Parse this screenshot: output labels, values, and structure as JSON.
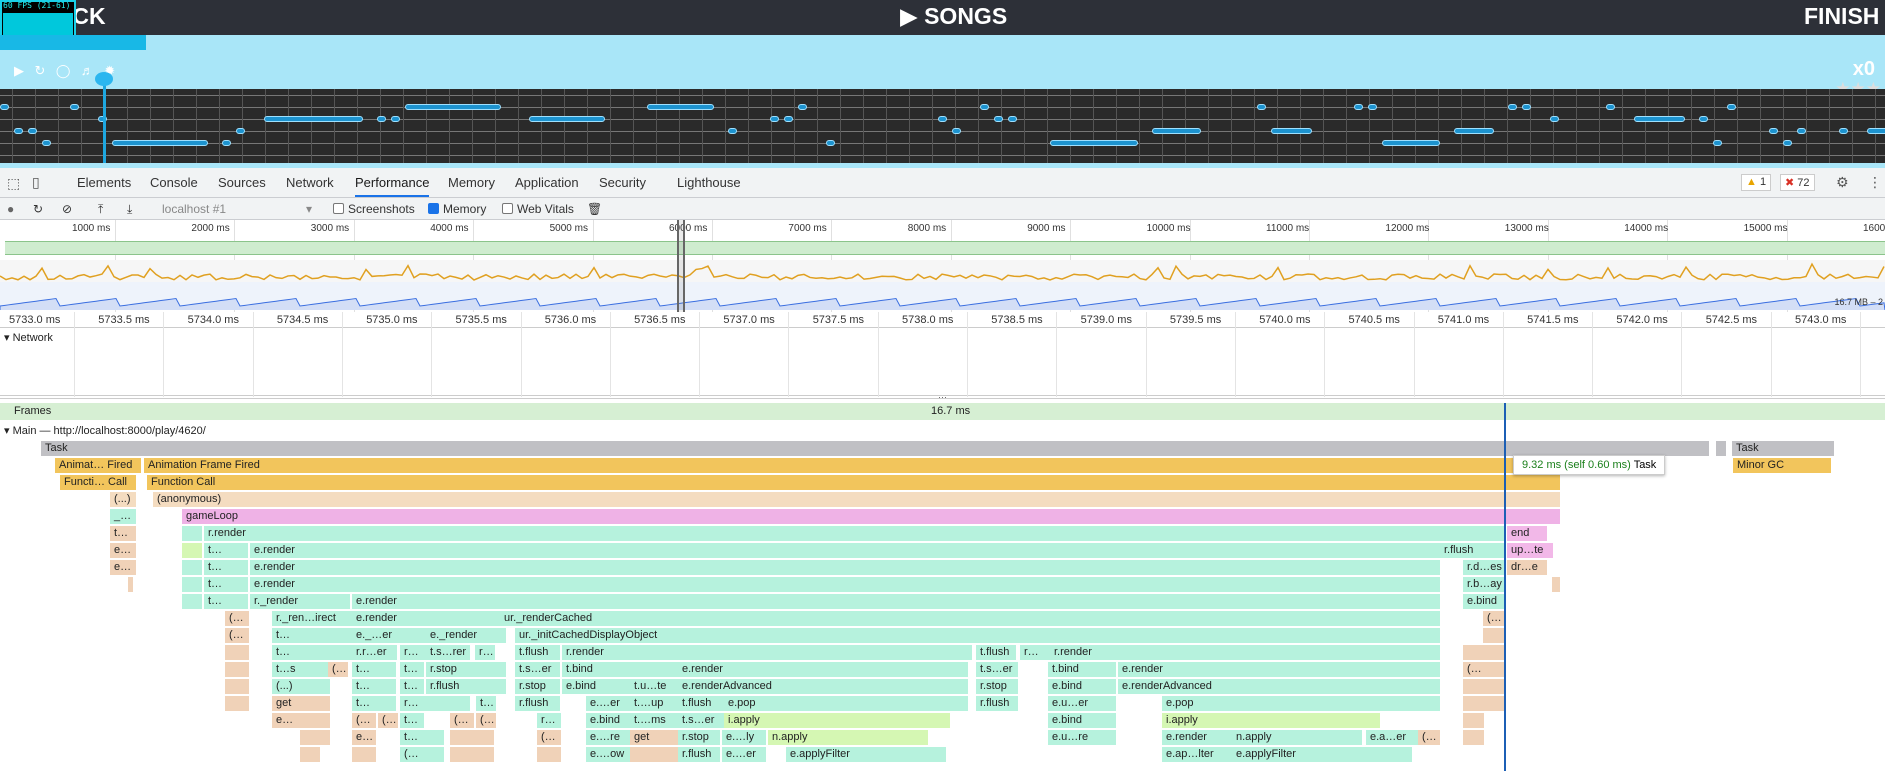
{
  "game": {
    "fps_text": "60 FPS (21-61)",
    "back_label": "BACK",
    "songs_label": "SONGS",
    "finish_label": "FINISH",
    "combo": "x0"
  },
  "devtools": {
    "tabs": [
      "Elements",
      "Console",
      "Sources",
      "Network",
      "Performance",
      "Memory",
      "Application",
      "Security",
      "Lighthouse"
    ],
    "warnings": "1",
    "errors": "72",
    "toolbar": {
      "target": "localhost #1",
      "screenshots": "Screenshots",
      "memory": "Memory",
      "web_vitals": "Web Vitals"
    },
    "overview_ticks": [
      "1000 ms",
      "2000 ms",
      "3000 ms",
      "4000 ms",
      "5000 ms",
      "6000 ms",
      "7000 ms",
      "8000 ms",
      "9000 ms",
      "10000 ms",
      "11000 ms",
      "12000 ms",
      "13000 ms",
      "14000 ms",
      "15000 ms",
      "1600"
    ],
    "memory_range": "16.7 MB – 2",
    "ruler_ticks": [
      "5733.0 ms",
      "5733.5 ms",
      "5734.0 ms",
      "5734.5 ms",
      "5735.0 ms",
      "5735.5 ms",
      "5736.0 ms",
      "5736.5 ms",
      "5737.0 ms",
      "5737.5 ms",
      "5738.0 ms",
      "5738.5 ms",
      "5739.0 ms",
      "5739.5 ms",
      "5740.0 ms",
      "5740.5 ms",
      "5741.0 ms",
      "5741.5 ms",
      "5742.0 ms",
      "5742.5 ms",
      "5743.0 ms"
    ],
    "network_label": "Network",
    "frames_label": "Frames",
    "frame_time": "16.7 ms",
    "main_label": "Main — http://localhost:8000/play/4620/",
    "tooltip": {
      "time": "9.32 ms (self 0.60 ms)",
      "name": "Task"
    },
    "flame": {
      "task": "Task",
      "task2": "Task",
      "animation_frame_short": "Animat… Fired",
      "animation_frame": "Animation Frame Fired",
      "function_call_short": "Functi… Call",
      "function_call": "Function Call",
      "minor_gc": "Minor GC",
      "anon_short": "(...)",
      "anonymous": "(anonymous)",
      "gameloop": "gameLoop",
      "r_render": "r.render",
      "e_render": "e.render",
      "r__render": "r._render",
      "ur_render_cached": "ur._renderCached",
      "ur_init_cached": "ur._initCachedDisplayObject",
      "r_render_indirect": "r._ren…irect",
      "e_dot_er": "e._…er",
      "e__render": "e._render",
      "t_flush": "t.flush",
      "r_stop": "r.stop",
      "t_bind": "t.bind",
      "r_flush": "r.flush",
      "e_bind": "e.bind",
      "e_render_advanced": "e.renderAdvanced",
      "e_pop": "e.pop",
      "i_apply": "i.apply",
      "n_apply": "n.apply",
      "e_apply_filter": "e.applyFilter",
      "e_ap_lter": "e.ap…lter",
      "get": "get",
      "end": "end",
      "up_te": "up…te",
      "dr_e": "dr…e",
      "r_d_es": "r.d…es",
      "r_b_ay": "r.b…ay",
      "e_u_er": "e.u…er",
      "e_u_re": "e.u…re",
      "e_a_er": "e.a…er",
      "t_s_er": "t.s…er",
      "t_u_te": "t.u…te",
      "t_ms": "t.…ms",
      "t_up": "t.…up",
      "e_er": "e.…er",
      "e_re": "e.…re",
      "e_ow": "e.…ow",
      "e_ly": "e.…ly",
      "r_r_er": "r.r…er",
      "t_s_rer": "t.s…rer",
      "t_s": "t…s",
      "t_dots": "t…",
      "e_dots": "e…",
      "r_dots": "r…",
      "under_dots": "_…",
      "open_paren": "(…"
    }
  }
}
